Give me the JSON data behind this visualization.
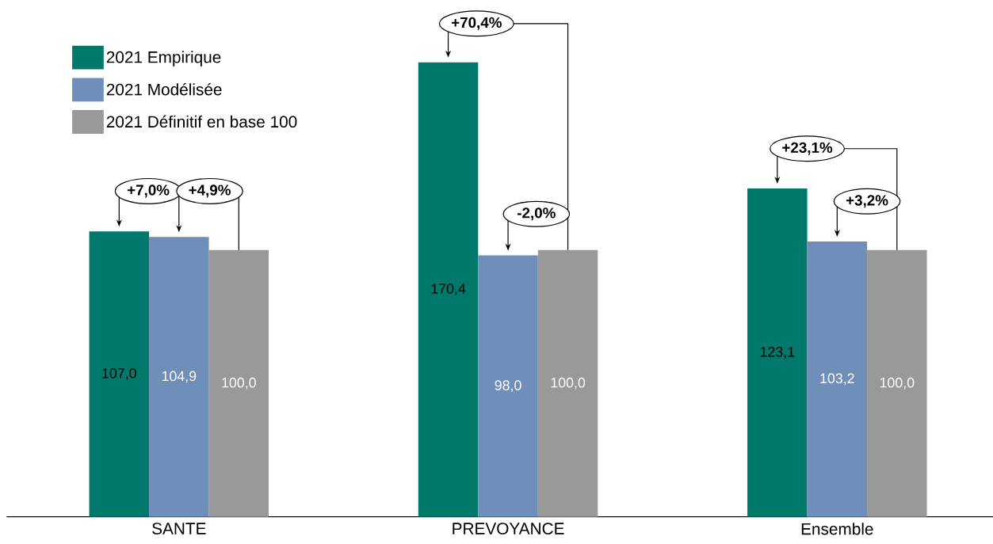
{
  "chart_data": {
    "type": "bar",
    "categories": [
      "SANTE",
      "PREVOYANCE",
      "Ensemble"
    ],
    "series": [
      {
        "name": "2021 Empirique",
        "color": "#00796b",
        "values": [
          107.0,
          170.4,
          123.1
        ],
        "value_labels": [
          "107,0",
          "170,4",
          "123,1"
        ]
      },
      {
        "name": "2021 Modélisée",
        "color": "#6f8fba",
        "values": [
          104.9,
          98.0,
          103.2
        ],
        "value_labels": [
          "104,9",
          "98,0",
          "103,2"
        ]
      },
      {
        "name": "2021 Définitif en base 100",
        "color": "#999999",
        "values": [
          100.0,
          100.0,
          100.0
        ],
        "value_labels": [
          "100,0",
          "100,0",
          "100,0"
        ]
      }
    ],
    "annotations": [
      "+7,0%",
      "+4,9%",
      "+70,4%",
      "-2,0%",
      "+23,1%",
      "+3,2%"
    ],
    "legend": "top left"
  }
}
